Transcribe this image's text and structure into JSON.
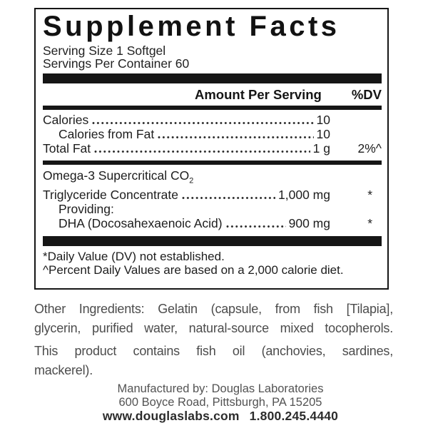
{
  "label": {
    "title": "Supplement Facts",
    "serving_size": "Serving Size 1 Softgel",
    "servings_per_container": "Servings Per Container 60",
    "columns": {
      "amount": "Amount Per Serving",
      "dv": "%DV"
    },
    "rows": [
      {
        "name": "Calories",
        "amount": "10",
        "dv": ""
      },
      {
        "name": "Calories from Fat",
        "amount": "10",
        "dv": ""
      },
      {
        "name": "Total Fat",
        "amount": "1 g",
        "dv": "2%^"
      }
    ],
    "omega": {
      "name_line1": "Omega-3 Supercritical CO",
      "name_sub": "2",
      "name_line2": "Triglyceride Concentrate",
      "amount": "1,000 mg",
      "dv": "*",
      "providing": "Providing:",
      "dha_name": "DHA (Docosahexaenoic Acid)",
      "dha_amount": "900 mg",
      "dha_dv": "*"
    },
    "footnotes": [
      "*Daily Value (DV) not established.",
      "^Percent Daily Values are based on a 2,000 calorie diet."
    ]
  },
  "other_ingredients": {
    "line1": "Other Ingredients: Gelatin (capsule, from fish  [Tilapia],",
    "line2": "glycerin, purified water, natural-source mixed tocopherols."
  },
  "allergen": {
    "line1": "This product contains fish oil (anchovies, sardines,",
    "line2": "mackerel)."
  },
  "manufacturer": {
    "line1": "Manufactured by:  Douglas Laboratories",
    "line2": "600 Boyce Road, Pittsburgh, PA 15205",
    "website": "www.douglaslabs.com",
    "phone": "1.800.245.4440"
  },
  "colors": {
    "ink": "#1d1d1d",
    "bar": "#161616",
    "muted": "#4c4c4c"
  }
}
